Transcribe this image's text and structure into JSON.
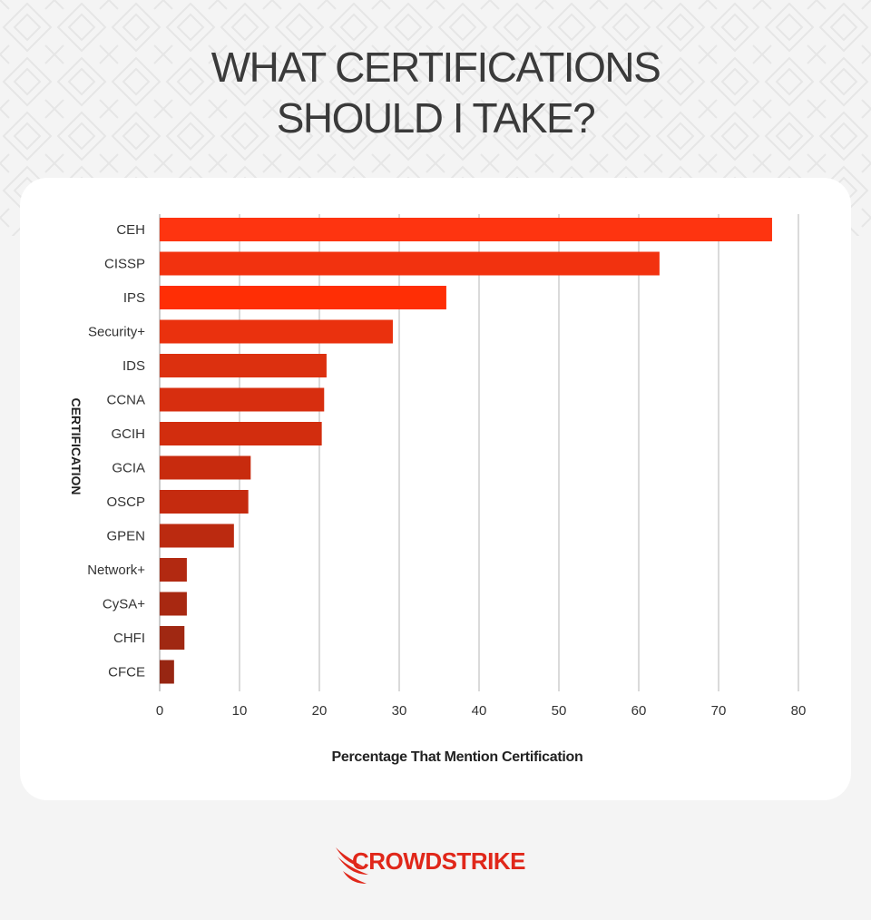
{
  "header": {
    "title_line1": "WHAT CERTIFICATIONS",
    "title_line2": "SHOULD I TAKE?"
  },
  "brand": {
    "logo_text": "CROWDSTRIKE",
    "color": "#e0271a"
  },
  "chart_data": {
    "type": "bar",
    "orientation": "horizontal",
    "title": "",
    "xlabel": "Percentage That Mention Certification",
    "ylabel": "CERTIFICATION",
    "xlim": [
      0,
      80
    ],
    "xticks": [
      0,
      10,
      20,
      30,
      40,
      50,
      60,
      70,
      80
    ],
    "grid": true,
    "categories": [
      "CEH",
      "CISSP",
      "IPS",
      "Security+",
      "IDS",
      "CCNA",
      "GCIH",
      "GCIA",
      "OSCP",
      "GPEN",
      "Network+",
      "CySA+",
      "CHFI",
      "CFCE"
    ],
    "values": [
      76.7,
      62.6,
      35.9,
      29.2,
      20.9,
      20.6,
      20.3,
      11.4,
      11.1,
      9.3,
      3.4,
      3.4,
      3.1,
      1.8
    ],
    "bar_colors": [
      "#fe3410",
      "#f2320f",
      "#ff2e05",
      "#ea310e",
      "#dc300f",
      "#d72e0f",
      "#d22d0e",
      "#c82b0e",
      "#c52b0f",
      "#bb2a10",
      "#b22911",
      "#a82811",
      "#a02812",
      "#972612"
    ]
  }
}
